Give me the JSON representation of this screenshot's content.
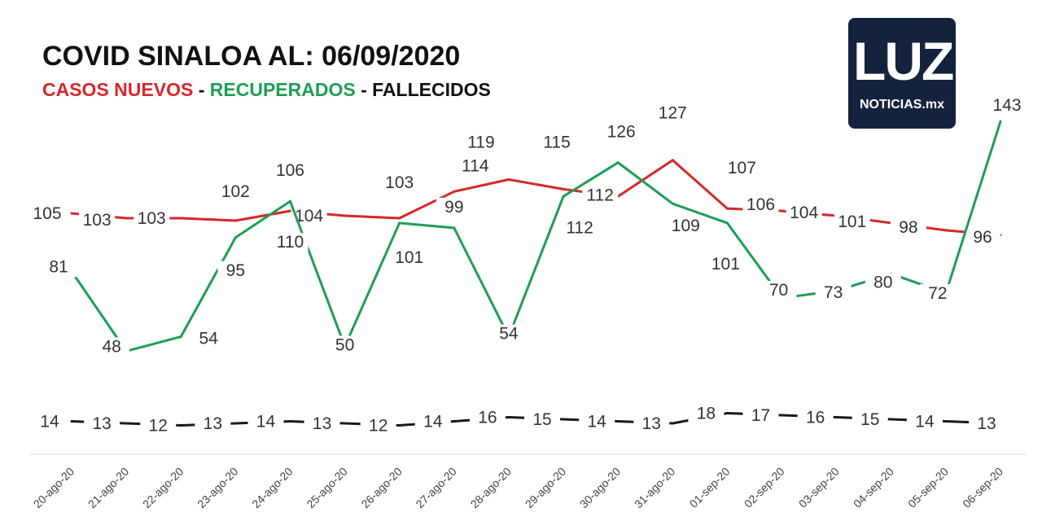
{
  "header": {
    "title": "COVID SINALOA AL: 06/09/2020",
    "subtitle": [
      {
        "text": "CASOS NUEVOS",
        "color": "#d62828"
      },
      {
        "text": " - ",
        "color": "#111111"
      },
      {
        "text": "RECUPERADOS",
        "color": "#1e9e55"
      },
      {
        "text": " - ",
        "color": "#111111"
      },
      {
        "text": "FALLECIDOS",
        "color": "#111111"
      }
    ]
  },
  "logo": {
    "mark": "LUZ",
    "sub": "NOTICIAS.mx"
  },
  "chart_data": {
    "type": "line",
    "categories": [
      "20-ago-20",
      "21-ago-20",
      "22-ago-20",
      "23-ago-20",
      "24-ago-20",
      "25-ago-20",
      "26-ago-20",
      "27-ago-20",
      "28-ago-20",
      "29-ago-20",
      "30-ago-20",
      "31-ago-20",
      "01-sep-20",
      "02-sep-20",
      "03-sep-20",
      "04-sep-20",
      "05-sep-20",
      "06-sep-20"
    ],
    "series": [
      {
        "name": "CASOS NUEVOS",
        "color": "#d62828",
        "values": [
          105,
          103,
          103,
          102,
          106,
          104,
          103,
          114,
          119,
          115,
          112,
          127,
          107,
          106,
          104,
          101,
          98,
          96
        ]
      },
      {
        "name": "RECUPERADOS",
        "color": "#1e9e55",
        "values": [
          81,
          48,
          54,
          95,
          110,
          50,
          101,
          99,
          54,
          112,
          126,
          109,
          101,
          70,
          73,
          80,
          72,
          143
        ]
      },
      {
        "name": "FALLECIDOS",
        "color": "#1a1a1a",
        "values": [
          14,
          13,
          12,
          13,
          14,
          13,
          12,
          14,
          16,
          15,
          14,
          13,
          18,
          17,
          16,
          15,
          14,
          13
        ]
      }
    ],
    "grid": false,
    "legend": "in subtitle"
  }
}
